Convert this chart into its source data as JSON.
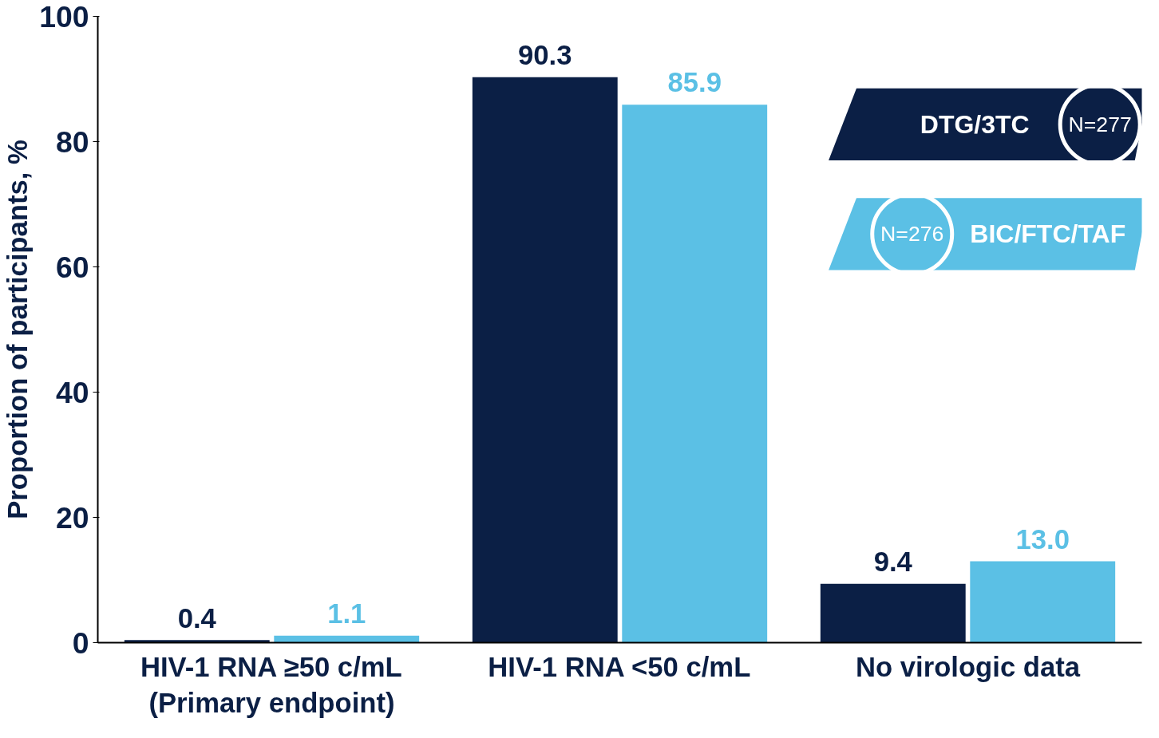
{
  "chart_data": {
    "type": "bar",
    "ylabel": "Proportion of participants, %",
    "categories": [
      "HIV-1 RNA ≥50 c/mL\n(Primary endpoint)",
      "HIV-1 RNA <50 c/mL",
      "No virologic data"
    ],
    "series": [
      {
        "name": "DTG/3TC",
        "color": "#0b1f45",
        "values": [
          0.4,
          90.3,
          9.4
        ]
      },
      {
        "name": "BIC/FTC/TAF",
        "color": "#5bc0e5",
        "values": [
          1.1,
          85.9,
          13.0
        ]
      }
    ],
    "value_labels": [
      [
        "0.4",
        "90.3",
        "9.4"
      ],
      [
        "1.1",
        "85.9",
        "13.0"
      ]
    ],
    "annotations": [
      "N=277",
      "N=276"
    ],
    "ylim": [
      0,
      100
    ],
    "yticks": [
      0,
      20,
      40,
      60,
      80,
      100
    ],
    "grid": false,
    "legend": "top right"
  }
}
